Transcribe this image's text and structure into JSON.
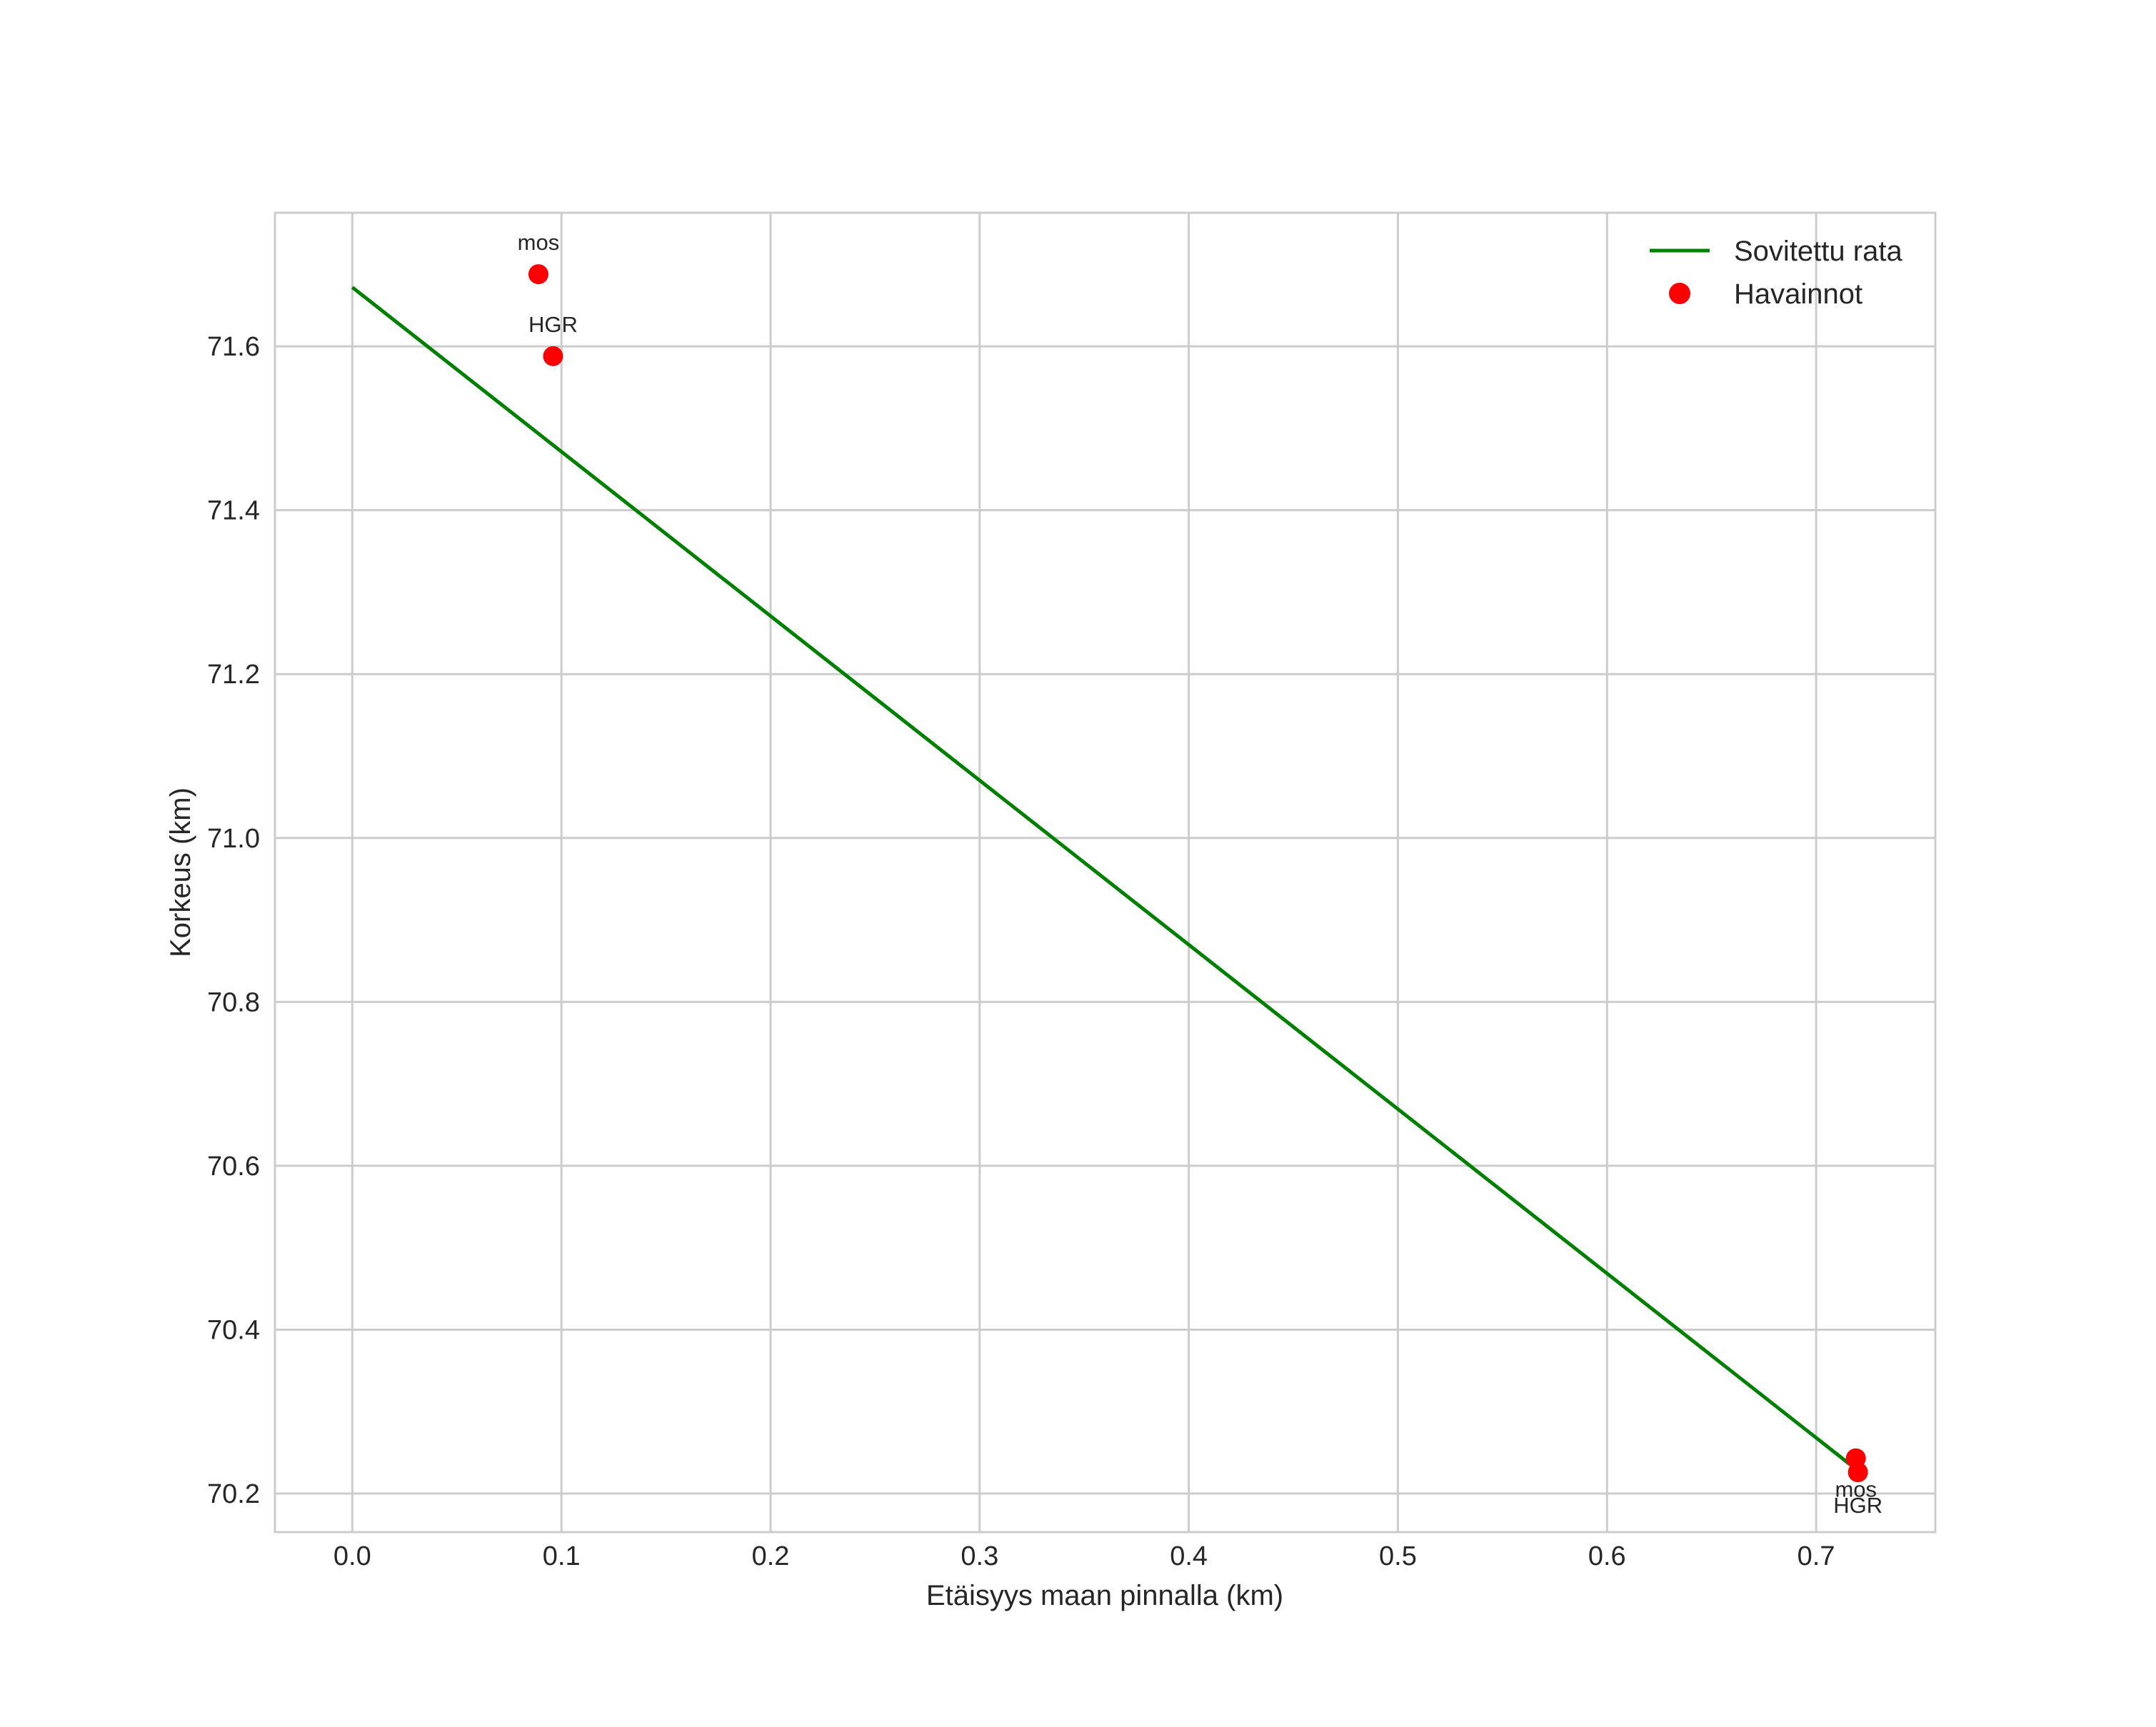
{
  "chart_data": {
    "type": "line",
    "title": "",
    "xlabel": "Etäisyys maan pinnalla (km)",
    "ylabel": "Korkeus (km)",
    "xlim": [
      -0.037,
      0.757
    ],
    "ylim": [
      70.153,
      71.763
    ],
    "grid": true,
    "legend_position": "upper right",
    "x_ticks": [
      "0.0",
      "0.1",
      "0.2",
      "0.3",
      "0.4",
      "0.5",
      "0.6",
      "0.7"
    ],
    "y_ticks": [
      "70.2",
      "70.4",
      "70.6",
      "70.8",
      "71.0",
      "71.2",
      "71.4",
      "71.6"
    ],
    "series": [
      {
        "name": "Sovitettu rata",
        "kind": "line",
        "color": "#008000",
        "x": [
          0.0,
          0.716
        ],
        "y": [
          71.672,
          70.236
        ]
      },
      {
        "name": "Havainnot",
        "kind": "scatter",
        "color": "#ff0000",
        "points": [
          {
            "x": 0.089,
            "y": 71.688,
            "label": "mos"
          },
          {
            "x": 0.096,
            "y": 71.588,
            "label": "HGR"
          },
          {
            "x": 0.719,
            "y": 70.243,
            "label": "mos"
          },
          {
            "x": 0.72,
            "y": 70.226,
            "label": "HGR"
          }
        ]
      }
    ]
  },
  "legend": {
    "items": [
      {
        "label": "Sovitettu rata",
        "kind": "line",
        "color": "#008000"
      },
      {
        "label": "Havainnot",
        "kind": "marker",
        "color": "#ff0000"
      }
    ]
  },
  "annotations": [
    "mos",
    "HGR",
    "mos",
    "HGR"
  ],
  "colors": {
    "grid": "#cccccc",
    "text": "#262626",
    "line": "#008000",
    "marker": "#ff0000"
  }
}
